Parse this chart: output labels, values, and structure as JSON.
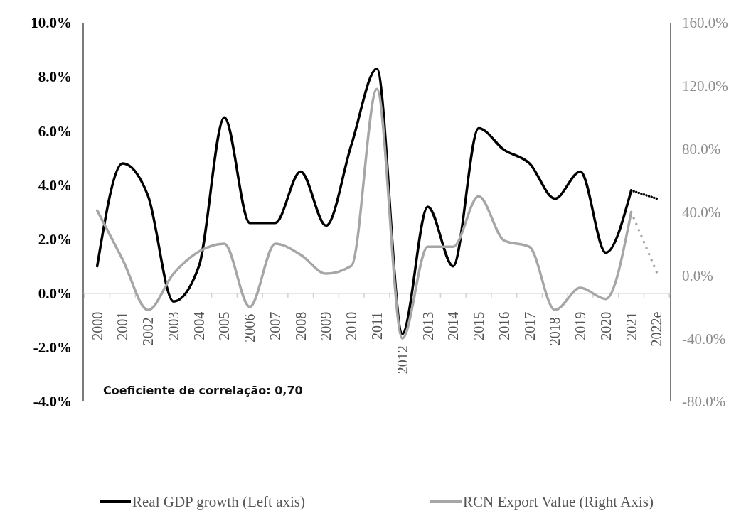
{
  "chart_data": {
    "type": "line",
    "categories": [
      "2000",
      "2001",
      "2002",
      "2003",
      "2004",
      "2005",
      "2006",
      "2007",
      "2008",
      "2009",
      "2010",
      "2011",
      "2012",
      "2013",
      "2014",
      "2015",
      "2016",
      "2017",
      "2018",
      "2019",
      "2020",
      "2021",
      "2022e"
    ],
    "series": [
      {
        "name": "Real GDP growth (Left axis)",
        "color": "#000000",
        "values": [
          1.0,
          4.8,
          3.6,
          -0.3,
          1.0,
          6.5,
          2.6,
          2.6,
          4.5,
          2.5,
          5.5,
          8.3,
          -1.5,
          3.2,
          1.0,
          6.1,
          5.3,
          4.8,
          3.5,
          4.5,
          1.5,
          3.8,
          null
        ]
      },
      {
        "name": "RCN Export Value (Right Axis)",
        "color": "#a6a6a6",
        "axis": "y2",
        "values": [
          41,
          10,
          -22,
          1,
          15,
          20,
          -20,
          20,
          13,
          1,
          6,
          118,
          -40,
          18,
          18,
          50,
          22,
          18,
          -22,
          -8,
          -15,
          40,
          null
        ]
      },
      {
        "color": "#000000",
        "line_style": "dotted",
        "values": [
          null,
          null,
          null,
          null,
          null,
          null,
          null,
          null,
          null,
          null,
          null,
          null,
          null,
          null,
          null,
          null,
          null,
          null,
          null,
          null,
          null,
          3.8,
          3.5
        ]
      },
      {
        "color": "#a6a6a6",
        "line_style": "dotted",
        "axis": "y2",
        "values": [
          null,
          null,
          null,
          null,
          null,
          null,
          null,
          null,
          null,
          null,
          null,
          null,
          null,
          null,
          null,
          null,
          null,
          null,
          null,
          null,
          null,
          40,
          2
        ]
      }
    ],
    "ylim": [
      -4,
      10
    ],
    "yticks": [
      {
        "value": -4,
        "label": "-4.0%"
      },
      {
        "value": -2,
        "label": "-2.0%"
      },
      {
        "value": 0,
        "label": "0.0%"
      },
      {
        "value": 2,
        "label": "2.0%"
      },
      {
        "value": 4,
        "label": "4.0%"
      },
      {
        "value": 6,
        "label": "6.0%"
      },
      {
        "value": 8,
        "label": "8.0%"
      },
      {
        "value": 10,
        "label": "10.0%"
      }
    ],
    "y2lim": [
      -80,
      160
    ],
    "y2ticks": [
      {
        "value": -80,
        "label": "-80.0%"
      },
      {
        "value": -40,
        "label": "-40.0%"
      },
      {
        "value": 0,
        "label": "0.0%"
      },
      {
        "value": 40,
        "label": "40.0%"
      },
      {
        "value": 80,
        "label": "80.0%"
      },
      {
        "value": 120,
        "label": "120.0%"
      },
      {
        "value": 160,
        "label": "160.0%"
      }
    ],
    "annotations": [
      "Coeficiente de correlação: 0,70"
    ],
    "legend": "bottom",
    "grid": false,
    "marker": "none",
    "line_style": "solid"
  }
}
